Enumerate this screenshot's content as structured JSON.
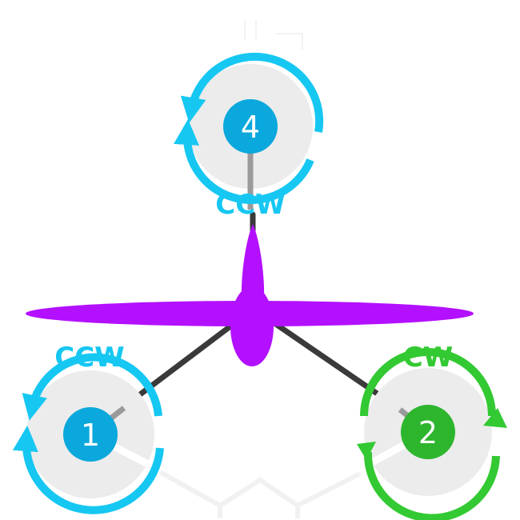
{
  "colors": {
    "ccw": "#16c7f2",
    "ccw_hub": "#0aa8dc",
    "cw": "#33c933",
    "cw_hub": "#2db52d",
    "airframe": "#b310ff",
    "arm": "#3a3a3a",
    "prop_disc": "#ececec",
    "shaft": "#9a9a9a"
  },
  "motors": [
    {
      "id": "motor-4",
      "number": "4",
      "direction": "CCW"
    },
    {
      "id": "motor-1",
      "number": "1",
      "direction": "CCW"
    },
    {
      "id": "motor-2",
      "number": "2",
      "direction": "CW"
    }
  ]
}
